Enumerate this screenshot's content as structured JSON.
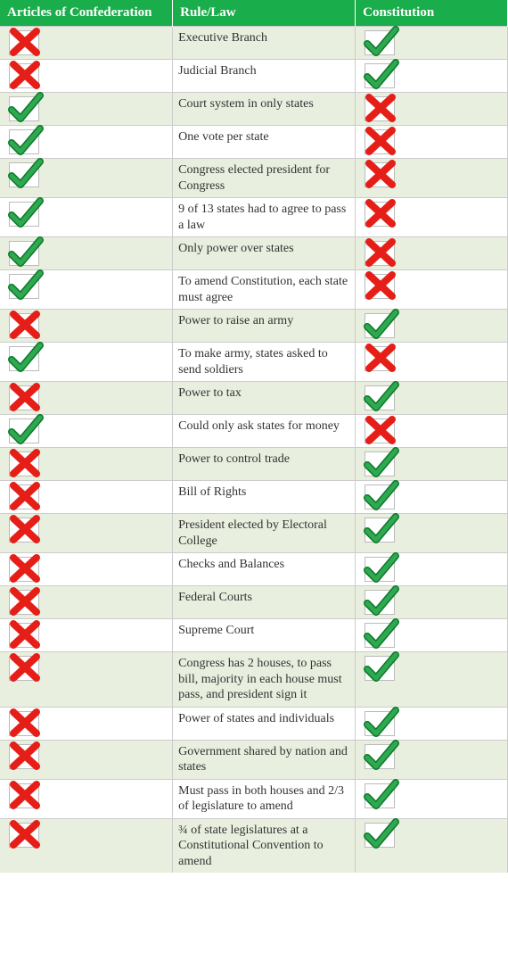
{
  "colors": {
    "header_bg": "#1aad4b",
    "header_text": "#ffffff",
    "row_even": "#e8efde",
    "row_odd": "#ffffff",
    "check_stroke": "#0b7a2c",
    "check_fill": "#2fa84f",
    "cross_color": "#e51e17",
    "text": "#333333"
  },
  "columns": [
    "Articles of Confederation",
    "Rule/Law",
    "Constitution"
  ],
  "rows": [
    {
      "aoc": "x",
      "rule": "Executive Branch",
      "const": "check"
    },
    {
      "aoc": "x",
      "rule": "Judicial Branch",
      "const": "check"
    },
    {
      "aoc": "check",
      "rule": "Court system in only states",
      "const": "x"
    },
    {
      "aoc": "check",
      "rule": "One vote per state",
      "const": "x"
    },
    {
      "aoc": "check",
      "rule": "Congress elected president for Congress",
      "const": "x"
    },
    {
      "aoc": "check",
      "rule": "9 of 13 states had to agree to pass a law",
      "const": "x"
    },
    {
      "aoc": "check",
      "rule": "Only power over states",
      "const": "x"
    },
    {
      "aoc": "check",
      "rule": "To amend Constitution, each state must agree",
      "const": "x"
    },
    {
      "aoc": "x",
      "rule": "Power to raise an army",
      "const": "check"
    },
    {
      "aoc": "check",
      "rule": "To make army, states asked to send soldiers",
      "const": "x"
    },
    {
      "aoc": "x",
      "rule": "Power to tax",
      "const": "check"
    },
    {
      "aoc": "check",
      "rule": "Could only ask states for money",
      "const": "x"
    },
    {
      "aoc": "x",
      "rule": "Power to control trade",
      "const": "check"
    },
    {
      "aoc": "x",
      "rule": "Bill of Rights",
      "const": "check"
    },
    {
      "aoc": "x",
      "rule": "President elected by Electoral College",
      "const": "check"
    },
    {
      "aoc": "x",
      "rule": "Checks and Balances",
      "const": "check"
    },
    {
      "aoc": "x",
      "rule": "Federal Courts",
      "const": "check"
    },
    {
      "aoc": "x",
      "rule": "Supreme Court",
      "const": "check"
    },
    {
      "aoc": "x",
      "rule": "Congress has 2 houses, to pass bill, majority in each house must pass, and president sign it",
      "const": "check"
    },
    {
      "aoc": "x",
      "rule": "Power of states and individuals",
      "const": "check"
    },
    {
      "aoc": "x",
      "rule": "Government shared by nation and states",
      "const": "check"
    },
    {
      "aoc": "x",
      "rule": "Must pass in both houses and 2/3 of legislature to amend",
      "const": "check"
    },
    {
      "aoc": "x",
      "rule": "¾ of state legislatures at a Constitutional Convention to amend",
      "const": "check"
    }
  ]
}
